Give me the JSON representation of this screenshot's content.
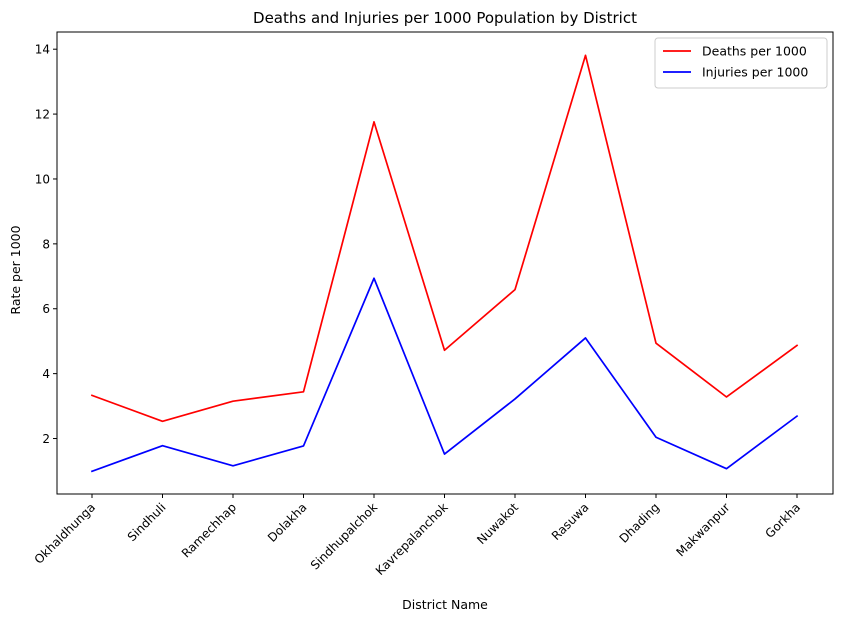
{
  "chart_data": {
    "type": "line",
    "title": "Deaths and Injuries per 1000 Population by District",
    "xlabel": "District Name",
    "ylabel": "Rate per 1000",
    "categories": [
      "Okhaldhunga",
      "Sindhuli",
      "Ramechhap",
      "Dolakha",
      "Sindhupalchok",
      "Kavrepalanchok",
      "Nuwakot",
      "Rasuwa",
      "Dhading",
      "Makwanpur",
      "Gorkha"
    ],
    "series": [
      {
        "name": "Deaths per 1000",
        "color": "#ff0000",
        "values": [
          3.33,
          2.53,
          3.15,
          3.44,
          11.76,
          4.72,
          6.59,
          13.81,
          4.94,
          3.28,
          4.87
        ]
      },
      {
        "name": "Injuries per 1000",
        "color": "#0000ff",
        "values": [
          0.99,
          1.78,
          1.16,
          1.77,
          6.94,
          1.52,
          3.22,
          5.1,
          2.04,
          1.07,
          2.69
        ]
      }
    ],
    "ylim": [
      0.29,
      14.53
    ],
    "yticks": [
      "2",
      "4",
      "6",
      "8",
      "10",
      "12",
      "14"
    ],
    "x_tick_rotation": 45,
    "legend": "top-right",
    "grid": false
  }
}
